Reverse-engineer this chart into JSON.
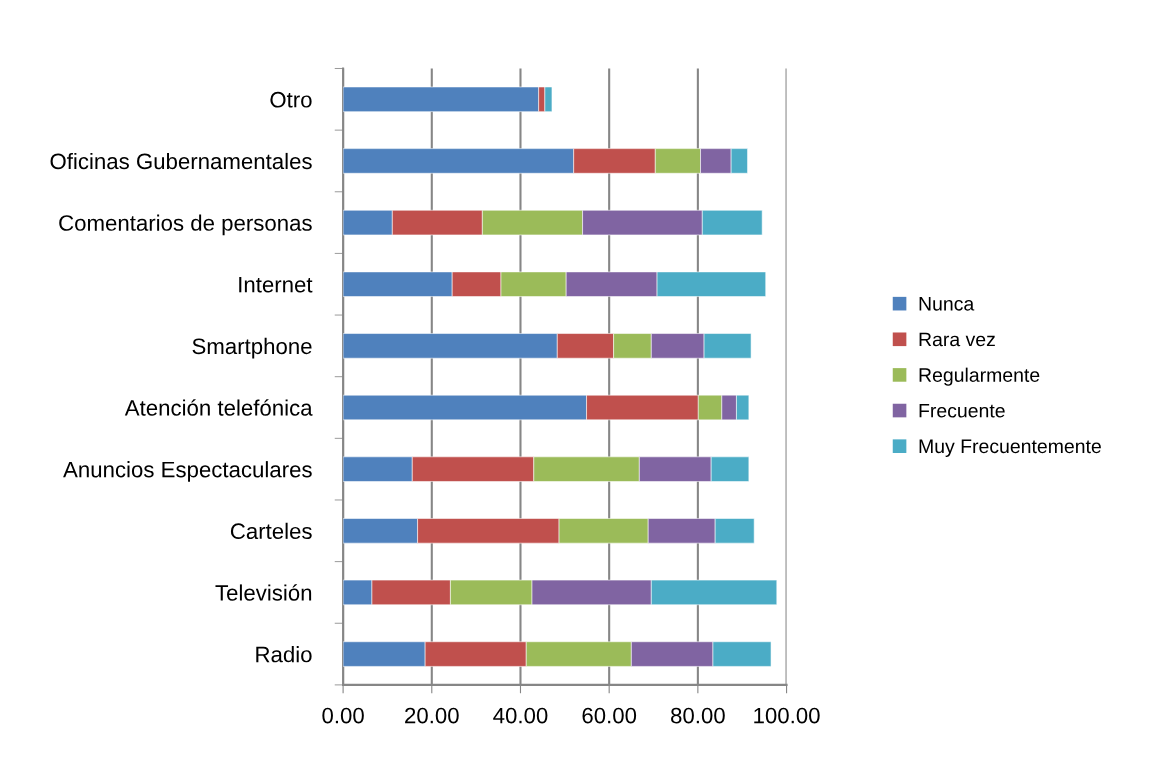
{
  "chart_data": {
    "type": "bar",
    "orientation": "horizontal",
    "stacked": true,
    "categories": [
      "Otro",
      "Oficinas Gubernamentales",
      "Comentarios de personas",
      "Internet",
      "Smartphone",
      "Atención telefónica",
      "Anuncios Espectaculares",
      "Carteles",
      "Televisión",
      "Radio"
    ],
    "series": [
      {
        "name": "Nunca",
        "color": "#4f81bd",
        "values": [
          44.1,
          52.0,
          11.1,
          24.6,
          48.3,
          54.9,
          15.6,
          16.8,
          6.5,
          18.5
        ]
      },
      {
        "name": "Rara vez",
        "color": "#c0504d",
        "values": [
          1.4,
          18.4,
          20.3,
          11.0,
          12.7,
          25.2,
          27.4,
          31.9,
          17.7,
          22.8
        ]
      },
      {
        "name": "Regularmente",
        "color": "#9bbb59",
        "values": [
          null,
          10.2,
          22.6,
          14.7,
          8.5,
          5.3,
          23.8,
          20.1,
          18.4,
          23.7
        ]
      },
      {
        "name": "Frecuente",
        "color": "#8064a2",
        "values": [
          null,
          6.9,
          27.0,
          20.5,
          11.9,
          3.3,
          16.2,
          15.1,
          26.9,
          18.4
        ]
      },
      {
        "name": "Muy Frecuentemente",
        "color": "#4bacc6",
        "values": [
          1.6,
          3.7,
          13.5,
          24.5,
          10.6,
          2.8,
          8.5,
          8.8,
          28.3,
          13.1
        ]
      }
    ],
    "xlim": [
      0,
      100
    ],
    "xticks": [
      {
        "value": 0,
        "label": "0.00"
      },
      {
        "value": 20,
        "label": "20.00"
      },
      {
        "value": 40,
        "label": "40.00"
      },
      {
        "value": 60,
        "label": "60.00"
      },
      {
        "value": 80,
        "label": "80.00"
      },
      {
        "value": 100,
        "label": "100.00"
      }
    ],
    "grid": "x",
    "legend": "right"
  }
}
